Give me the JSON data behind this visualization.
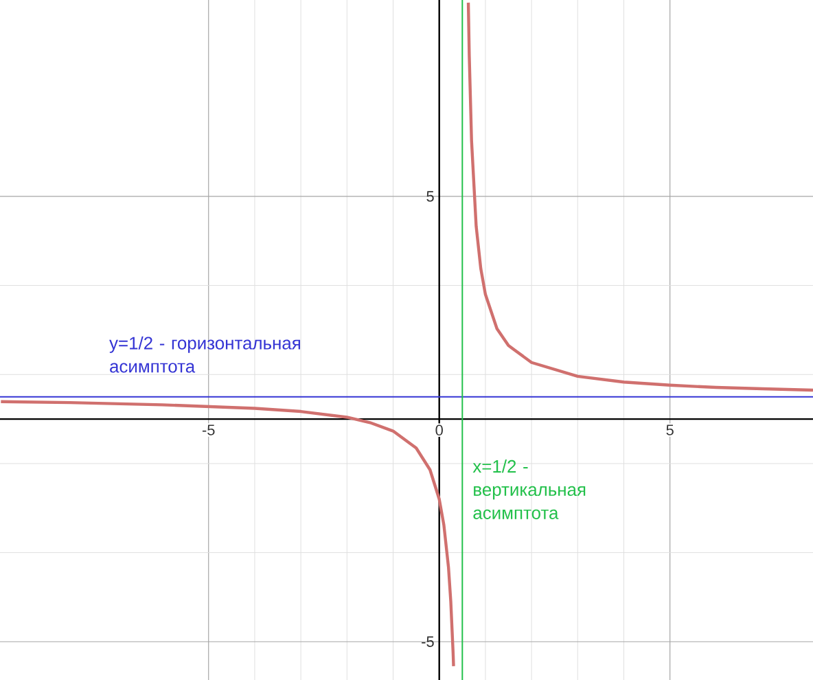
{
  "chart_data": {
    "type": "line",
    "series": [
      {
        "color": "#d0706e",
        "x": [
          -9.5,
          -8,
          -6,
          -4,
          -3,
          -2,
          -1.5,
          -1,
          -0.5,
          -0.2,
          0,
          0.1,
          0.2,
          0.25,
          0.3,
          0.31
        ],
        "values": [
          0.39,
          0.37,
          0.32,
          0.24,
          0.17,
          0.04,
          -0.08,
          -0.27,
          -0.65,
          -1.14,
          -1.8,
          -2.38,
          -3.33,
          -4.1,
          -5.25,
          -5.55
        ]
      },
      {
        "color": "#d0706e",
        "x": [
          0.63,
          0.65,
          0.7,
          0.8,
          0.9,
          1,
          1.25,
          1.5,
          2,
          3,
          4,
          5,
          6,
          7,
          8.1
        ],
        "values": [
          9.35,
          8.17,
          6.25,
          4.33,
          3.38,
          2.8,
          2.03,
          1.65,
          1.27,
          0.96,
          0.83,
          0.76,
          0.71,
          0.68,
          0.65
        ]
      }
    ],
    "xlim": [
      -9.52,
      8.1
    ],
    "ylim": [
      -5.86,
      9.41
    ],
    "xticks": [
      -5,
      0,
      5
    ],
    "yticks": [
      -5,
      5
    ],
    "grid": true,
    "marker": "none",
    "line_style": "solid",
    "ref_lines": [
      {
        "axis": "y",
        "value": 0.5,
        "label": "y=1/2  -  горизонтальная асимптота",
        "color": "#3434d4"
      },
      {
        "axis": "x",
        "value": 0.5,
        "label": "x=1/2  - вертикальная асимптота",
        "color": "#22c04a"
      }
    ]
  }
}
